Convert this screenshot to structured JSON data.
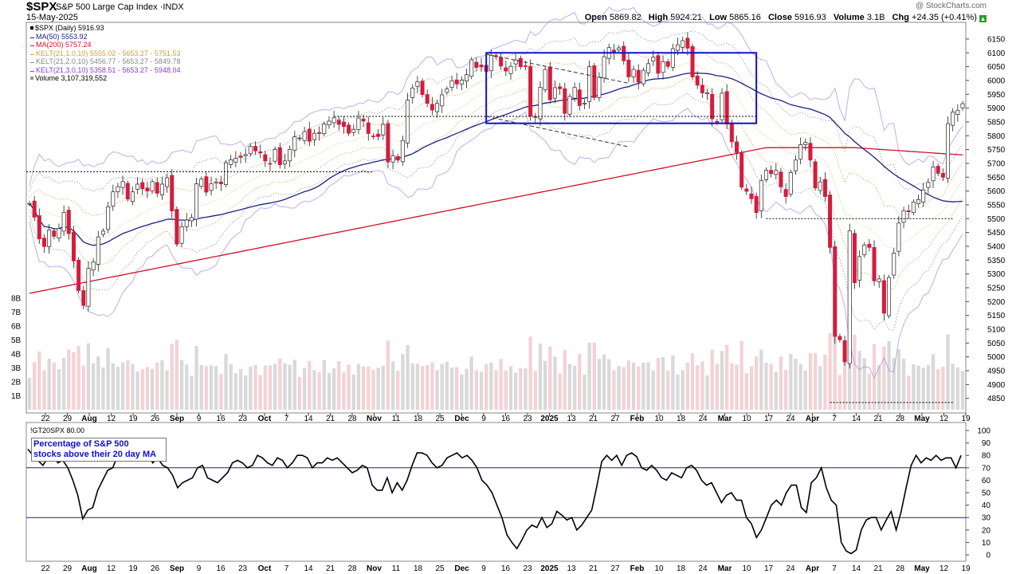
{
  "header": {
    "symbol": "$SPX",
    "name": "S&P 500 Large Cap Index ·INDX",
    "date": "15-May-2025",
    "watermark": "@ StockCharts.com",
    "open_label": "Open",
    "open": "5869.82",
    "high_label": "High",
    "high": "5924.21",
    "low_label": "Low",
    "low": "5865.16",
    "close_label": "Close",
    "close": "5916.93",
    "volume_label": "Volume",
    "volume": "3.1B",
    "chg_label": "Chg",
    "chg": "+24.35 (+0.41%)",
    "chg_arrow": "arrow-up-icon"
  },
  "legend": [
    {
      "text": "$SPX (Daily) 5916.93",
      "color": "#000000"
    },
    {
      "text": "MA(50) 5553.92",
      "color": "#1a237e"
    },
    {
      "text": "MA(200) 5757.24",
      "color": "#d0102a"
    },
    {
      "text": "KELT(21,1.0,10) 5555.02 - 5653.27 - 5751.53",
      "color": "#c8a23c"
    },
    {
      "text": "KELT(21,2.0,10) 5456.77 - 5653.27 - 5849.78",
      "color": "#888888"
    },
    {
      "text": "KELT(21,3.0,10) 5358.51 - 5653.27 - 5948.04",
      "color": "#8a3bd1"
    },
    {
      "text": "Volume 3,107,319,552",
      "color": "#555555"
    }
  ],
  "indicator": {
    "label": "!GT20SPX 80.00",
    "note_line1": "Percentage of S&P 500",
    "note_line2": "stocks above their 20 day MA"
  },
  "chart_data": [
    {
      "type": "candlestick",
      "title": "$SPX (Daily)",
      "y_range": [
        4800,
        6170
      ],
      "y_ticks": [
        6150,
        6100,
        6050,
        6000,
        5950,
        5900,
        5850,
        5800,
        5750,
        5700,
        5650,
        5600,
        5550,
        5500,
        5450,
        5400,
        5350,
        5300,
        5250,
        5200,
        5150,
        5100,
        5050,
        5000,
        4950,
        4900,
        4850
      ],
      "volume_ticks": [
        "1B",
        "2B",
        "3B",
        "4B",
        "5B",
        "6B",
        "7B",
        "8B"
      ],
      "volume_range": [
        0,
        8000000000
      ],
      "x_tick_labels": [
        "22",
        "29",
        "Aug",
        "12",
        "19",
        "26",
        "Sep",
        "9",
        "16",
        "23",
        "Oct",
        "7",
        "14",
        "21",
        "28",
        "Nov",
        "11",
        "18",
        "25",
        "Dec",
        "9",
        "16",
        "23",
        "2025",
        "13",
        "21",
        "27",
        "Feb",
        "10",
        "18",
        "24",
        "Mar",
        "10",
        "17",
        "24",
        "Apr",
        "7",
        "14",
        "21",
        "28",
        "May",
        "12",
        "19"
      ],
      "bold_x_labels": [
        "Aug",
        "Sep",
        "Oct",
        "Nov",
        "Dec",
        "2025",
        "Feb",
        "Mar",
        "Apr",
        "May"
      ],
      "close_series": [
        5555,
        5505,
        5427,
        5399,
        5459,
        5436,
        5464,
        5522,
        5446,
        5347,
        5240,
        5186,
        5320,
        5344,
        5434,
        5455,
        5543,
        5597,
        5616,
        5634,
        5571,
        5597,
        5625,
        5608,
        5600,
        5634,
        5592,
        5625,
        5648,
        5528,
        5408,
        5471,
        5495,
        5504,
        5626,
        5643,
        5596,
        5626,
        5633,
        5626,
        5702,
        5713,
        5718,
        5722,
        5732,
        5762,
        5745,
        5738,
        5709,
        5699,
        5751,
        5695,
        5709,
        5751,
        5796,
        5792,
        5815,
        5780,
        5809,
        5808,
        5842,
        5853,
        5865,
        5841,
        5833,
        5809,
        5823,
        5864,
        5853,
        5808,
        5797,
        5797,
        5841,
        5705,
        5728,
        5712,
        5783,
        5929,
        5973,
        5995,
        5949,
        5917,
        5893,
        5917,
        5948,
        5969,
        5999,
        5987,
        6001,
        6021,
        6075,
        6047,
        6049,
        6032,
        6090,
        6086,
        6052,
        6034,
        6051,
        6074,
        6050,
        6051,
        5872,
        5867,
        5975,
        6040,
        5930,
        5974,
        5970,
        5881,
        5942,
        5975,
        5909,
        5918,
        6050,
        5938,
        6012,
        6086,
        6119,
        6101,
        6118,
        6071,
        6013,
        6040,
        5994,
        6037,
        6061,
        6084,
        6026,
        6068,
        6051,
        6115,
        6129,
        6144,
        6117,
        6013,
        5983,
        5955,
        5956,
        5861,
        5849,
        5954,
        5842,
        5778,
        5739,
        5614,
        5599,
        5572,
        5522,
        5638,
        5675,
        5663,
        5675,
        5615,
        5580,
        5667,
        5712,
        5768,
        5776,
        5712,
        5611,
        5633,
        5580,
        5396,
        5074,
        5062,
        4982,
        5456,
        5268,
        5363,
        5405,
        5396,
        5275,
        5282,
        5158,
        5287,
        5376,
        5484,
        5529,
        5525,
        5560,
        5569,
        5604,
        5631,
        5687,
        5664,
        5650,
        5844,
        5886,
        5892,
        5916
      ],
      "overlays": [
        "MA(50)",
        "MA(200)",
        "KELT(21,1.0,10)",
        "KELT(21,2.0,10)",
        "KELT(21,3.0,10)"
      ],
      "annotations": [
        "trading range box Dec–Mar 5850–6100",
        "dotted support lines near 5670, 5870, 5500, 4835",
        "dashed falling wedge lines Dec–Jan"
      ]
    },
    {
      "type": "line",
      "title": "!GT20SPX",
      "series": [
        {
          "name": "!GT20SPX",
          "last_value": 80.0
        }
      ],
      "y_range": [
        0,
        100
      ],
      "y_ticks": [
        100,
        90,
        80,
        70,
        60,
        50,
        40,
        30,
        20,
        10,
        0
      ],
      "reference_lines": [
        70,
        30
      ],
      "values": [
        85,
        80,
        76,
        72,
        78,
        80,
        74,
        76,
        70,
        60,
        48,
        29,
        36,
        38,
        52,
        60,
        68,
        70,
        80,
        82,
        79,
        80,
        78,
        80,
        82,
        74,
        78,
        72,
        70,
        64,
        54,
        58,
        60,
        62,
        70,
        72,
        62,
        60,
        58,
        62,
        66,
        74,
        76,
        74,
        70,
        72,
        80,
        78,
        74,
        72,
        78,
        76,
        70,
        74,
        80,
        80,
        78,
        70,
        74,
        74,
        78,
        76,
        78,
        74,
        70,
        66,
        68,
        72,
        70,
        56,
        52,
        52,
        62,
        50,
        58,
        52,
        60,
        72,
        82,
        82,
        80,
        74,
        70,
        72,
        78,
        80,
        82,
        78,
        80,
        76,
        70,
        60,
        56,
        50,
        40,
        30,
        16,
        10,
        5,
        12,
        20,
        24,
        22,
        30,
        22,
        25,
        35,
        32,
        28,
        30,
        20,
        24,
        30,
        36,
        55,
        75,
        80,
        76,
        80,
        72,
        80,
        82,
        79,
        70,
        68,
        72,
        68,
        62,
        60,
        66,
        64,
        62,
        70,
        72,
        68,
        60,
        56,
        58,
        50,
        42,
        48,
        50,
        44,
        44,
        30,
        25,
        14,
        20,
        30,
        40,
        44,
        40,
        50,
        56,
        56,
        38,
        34,
        58,
        62,
        70,
        54,
        44,
        40,
        10,
        3,
        1,
        4,
        20,
        28,
        30,
        30,
        20,
        28,
        35,
        20,
        35,
        54,
        72,
        80,
        74,
        78,
        76,
        80,
        76,
        78,
        78,
        70,
        80
      ]
    }
  ],
  "colors": {
    "up": "#ffffff",
    "down": "#d41c3c",
    "ma50": "#1a237e",
    "ma200": "#d0102a",
    "kelt1": "#c8a23c",
    "kelt2": "#888888",
    "kelt3": "#a58ae6",
    "box": "#1010cc"
  }
}
